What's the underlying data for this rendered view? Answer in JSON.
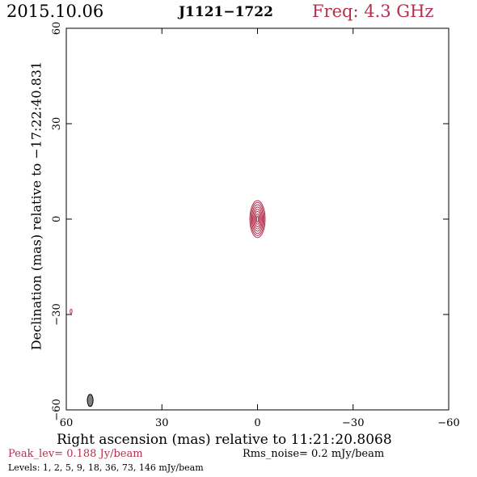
{
  "header": {
    "date": "2015.10.06",
    "source": "J1121−1722",
    "freq_label": "Freq: 4.3 GHz"
  },
  "footer": {
    "peak": "Peak_lev=  0.188 Jy/beam",
    "rms": "Rms_noise=  0.2 mJy/beam",
    "levels": "Levels:   1,   2,   5,   9,  18,  36,  73, 146 mJy/beam"
  },
  "colors": {
    "contour": "#b5304e",
    "beam": "#808080",
    "frame": "#000000"
  },
  "chart_data": {
    "type": "contour",
    "xlabel": "Right ascension (mas) relative to 11:21:20.8068",
    "ylabel": "Declination (mas) relative to −17:22:40.831",
    "xlim": [
      60,
      -60
    ],
    "ylim": [
      -60,
      60
    ],
    "xticks": [
      60,
      30,
      0,
      -30,
      -60
    ],
    "yticks": [
      -60,
      -30,
      0,
      30,
      60
    ],
    "xtick_labels": [
      "60",
      "30",
      "0",
      "−30",
      "−60"
    ],
    "ytick_labels": [
      "−60",
      "−30",
      "0",
      "30",
      "60"
    ],
    "levels_mjy": [
      1,
      2,
      5,
      9,
      18,
      36,
      73,
      146
    ],
    "peak_jy_per_beam": 0.188,
    "rms_noise_mjy_per_beam": 0.2,
    "contours": [
      {
        "x": 0,
        "y": 0,
        "rx": 2.4,
        "ry": 5.8
      },
      {
        "x": 0,
        "y": 0,
        "rx": 2.1,
        "ry": 5.2
      },
      {
        "x": 0,
        "y": 0,
        "rx": 1.8,
        "ry": 4.5
      },
      {
        "x": 0,
        "y": 0,
        "rx": 1.5,
        "ry": 3.8
      },
      {
        "x": 0,
        "y": 0,
        "rx": 1.2,
        "ry": 3.1
      },
      {
        "x": 0,
        "y": 0,
        "rx": 0.9,
        "ry": 2.4
      },
      {
        "x": 0,
        "y": 0,
        "rx": 0.6,
        "ry": 1.6
      },
      {
        "x": 0,
        "y": 0,
        "rx": 0.3,
        "ry": 0.9
      }
    ],
    "minor_features": [
      {
        "x": 58.5,
        "y": -29,
        "rx": 0.3,
        "ry": 0.7
      }
    ],
    "beam": {
      "x": 52.5,
      "y": -57,
      "rx": 0.9,
      "ry": 1.9
    }
  }
}
